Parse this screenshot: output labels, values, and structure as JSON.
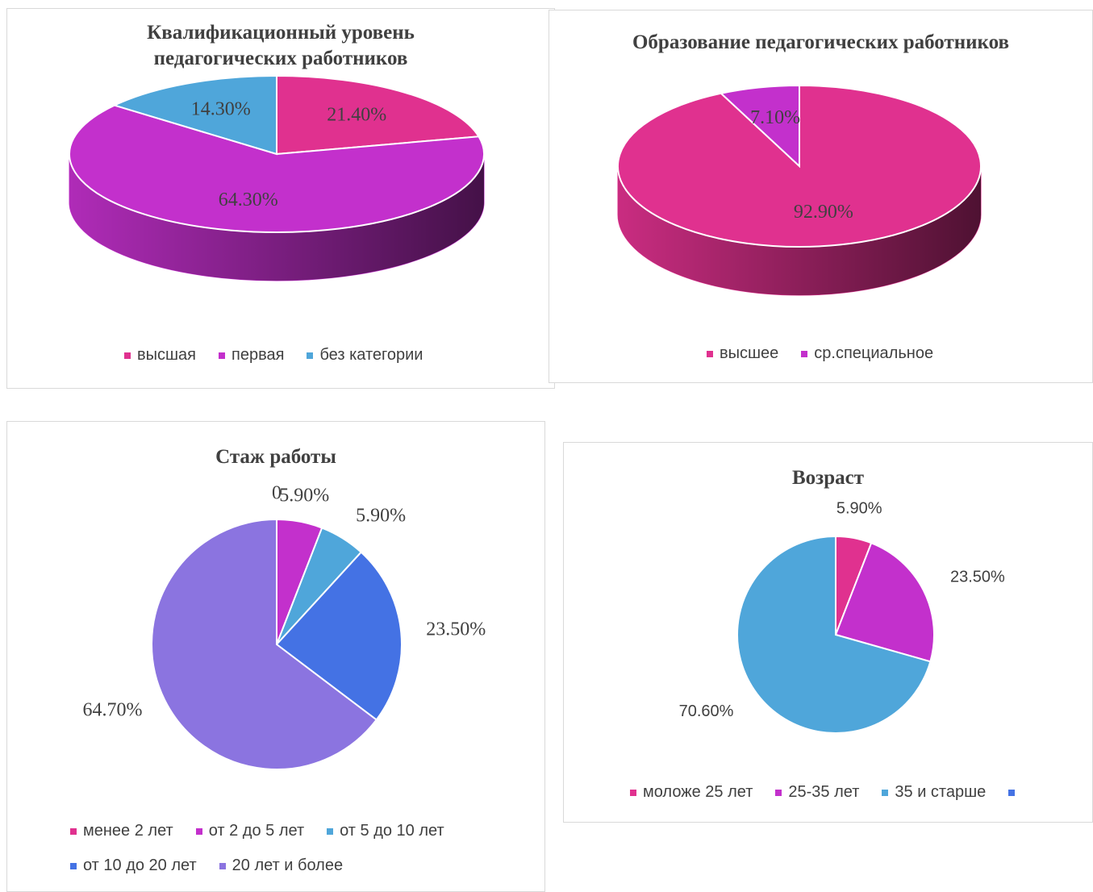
{
  "chart_data": [
    {
      "type": "pie",
      "pie_3d": true,
      "title": "Квалификационный уровень педагогических работников",
      "categories": [
        "высшая",
        "первая",
        "без категории"
      ],
      "values": [
        21.4,
        64.3,
        14.3
      ],
      "value_labels": [
        "21.40%",
        "64.30%",
        "14.30%"
      ],
      "colors": [
        "#e0318f",
        "#c330cc",
        "#4fa6da"
      ]
    },
    {
      "type": "pie",
      "pie_3d": true,
      "title": "Образование педагогических работников",
      "categories": [
        "высшее",
        "ср.специальное"
      ],
      "values": [
        92.9,
        7.1
      ],
      "value_labels": [
        "92.90%",
        "7.10%"
      ],
      "colors": [
        "#e0318f",
        "#c330cc"
      ]
    },
    {
      "type": "pie",
      "pie_3d": false,
      "title": "Стаж работы",
      "categories": [
        "менее 2 лет",
        "от 2 до 5 лет",
        "от 5 до 10 лет",
        "от 10 до 20 лет",
        "20 лет и более"
      ],
      "values": [
        0,
        5.9,
        5.9,
        23.5,
        64.7
      ],
      "value_labels": [
        "0",
        "5.90%",
        "5.90%",
        "23.50%",
        "64.70%"
      ],
      "colors": [
        "#e0318f",
        "#c330cc",
        "#4fa6da",
        "#4472e4",
        "#8b74e0"
      ]
    },
    {
      "type": "pie",
      "pie_3d": false,
      "title": "Возраст",
      "categories": [
        "моложе 25 лет",
        "25-35 лет",
        "35 и старше",
        null
      ],
      "values": [
        5.9,
        23.5,
        70.6,
        null
      ],
      "value_labels": [
        "5.90%",
        "23.50%",
        "70.60%",
        null
      ],
      "colors": [
        "#e0318f",
        "#c330cc",
        "#4fa6da",
        "#4472e4"
      ]
    }
  ]
}
